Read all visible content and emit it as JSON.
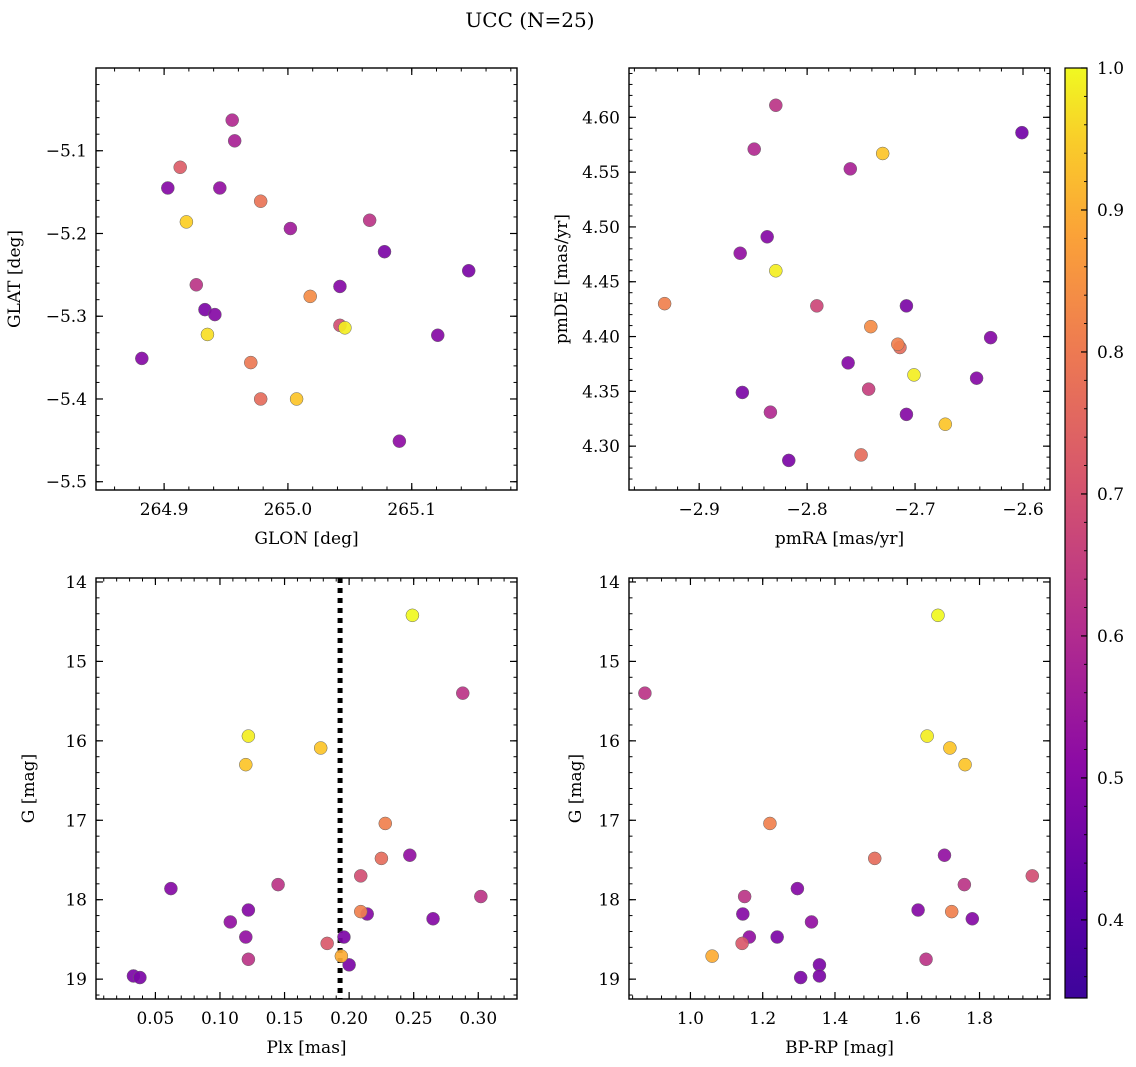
{
  "figure_title": "UCC (N=25)",
  "colorbar": {
    "range": [
      0.345,
      1.0
    ],
    "ticks": [
      "0.4",
      "0.5",
      "0.6",
      "0.7",
      "0.8",
      "0.9",
      "1.0"
    ],
    "tick_values": [
      0.4,
      0.5,
      0.6,
      0.7,
      0.8,
      0.9,
      1.0
    ],
    "colormap": "plasma"
  },
  "chart_data": [
    {
      "type": "scatter",
      "xlabel": "GLON [deg]",
      "ylabel": "GLAT [deg]",
      "xlim": [
        264.845,
        265.185
      ],
      "ylim": [
        -5.51,
        -5.0
      ],
      "xticks": [
        264.9,
        265.0,
        265.1
      ],
      "xtick_labels": [
        "264.9",
        "265.0",
        "265.1"
      ],
      "yticks": [
        -5.1,
        -5.2,
        -5.3,
        -5.4,
        -5.5
      ],
      "ytick_labels": [
        "−5.1",
        "−5.2",
        "−5.3",
        "−5.4",
        "−5.5"
      ],
      "points": [
        {
          "x": 264.955,
          "y": -5.063,
          "c": 0.52
        },
        {
          "x": 264.957,
          "y": -5.088,
          "c": 0.5
        },
        {
          "x": 264.913,
          "y": -5.12,
          "c": 0.66
        },
        {
          "x": 264.903,
          "y": -5.145,
          "c": 0.42
        },
        {
          "x": 264.945,
          "y": -5.145,
          "c": 0.45
        },
        {
          "x": 264.978,
          "y": -5.161,
          "c": 0.72
        },
        {
          "x": 264.918,
          "y": -5.186,
          "c": 0.92
        },
        {
          "x": 265.066,
          "y": -5.184,
          "c": 0.55
        },
        {
          "x": 265.002,
          "y": -5.194,
          "c": 0.48
        },
        {
          "x": 265.078,
          "y": -5.222,
          "c": 0.4
        },
        {
          "x": 265.146,
          "y": -5.245,
          "c": 0.4
        },
        {
          "x": 264.926,
          "y": -5.262,
          "c": 0.55
        },
        {
          "x": 265.042,
          "y": -5.264,
          "c": 0.42
        },
        {
          "x": 265.018,
          "y": -5.276,
          "c": 0.78
        },
        {
          "x": 264.933,
          "y": -5.292,
          "c": 0.4
        },
        {
          "x": 264.941,
          "y": -5.298,
          "c": 0.42
        },
        {
          "x": 265.042,
          "y": -5.311,
          "c": 0.62
        },
        {
          "x": 265.046,
          "y": -5.314,
          "c": 0.98
        },
        {
          "x": 264.935,
          "y": -5.322,
          "c": 0.95
        },
        {
          "x": 265.121,
          "y": -5.323,
          "c": 0.42
        },
        {
          "x": 264.882,
          "y": -5.351,
          "c": 0.42
        },
        {
          "x": 264.97,
          "y": -5.356,
          "c": 0.73
        },
        {
          "x": 264.978,
          "y": -5.4,
          "c": 0.7
        },
        {
          "x": 265.007,
          "y": -5.4,
          "c": 0.9
        },
        {
          "x": 265.09,
          "y": -5.451,
          "c": 0.44
        }
      ]
    },
    {
      "type": "scatter",
      "xlabel": "pmRA [mas/yr]",
      "ylabel": "pmDE [mas/yr]",
      "xlim": [
        -2.965,
        -2.575
      ],
      "ylim": [
        4.26,
        4.645
      ],
      "xticks": [
        -2.9,
        -2.8,
        -2.7,
        -2.6
      ],
      "xtick_labels": [
        "−2.9",
        "−2.8",
        "−2.7",
        "−2.6"
      ],
      "yticks": [
        4.3,
        4.35,
        4.4,
        4.45,
        4.5,
        4.55,
        4.6
      ],
      "ytick_labels": [
        "4.30",
        "4.35",
        "4.40",
        "4.45",
        "4.50",
        "4.55",
        "4.60"
      ],
      "points": [
        {
          "x": -2.829,
          "y": 4.611,
          "c": 0.55
        },
        {
          "x": -2.601,
          "y": 4.586,
          "c": 0.38
        },
        {
          "x": -2.849,
          "y": 4.571,
          "c": 0.52
        },
        {
          "x": -2.73,
          "y": 4.567,
          "c": 0.9
        },
        {
          "x": -2.76,
          "y": 4.553,
          "c": 0.5
        },
        {
          "x": -2.837,
          "y": 4.491,
          "c": 0.42
        },
        {
          "x": -2.862,
          "y": 4.476,
          "c": 0.45
        },
        {
          "x": -2.829,
          "y": 4.46,
          "c": 0.98
        },
        {
          "x": -2.932,
          "y": 4.43,
          "c": 0.75
        },
        {
          "x": -2.791,
          "y": 4.428,
          "c": 0.6
        },
        {
          "x": -2.708,
          "y": 4.428,
          "c": 0.4
        },
        {
          "x": -2.741,
          "y": 4.409,
          "c": 0.78
        },
        {
          "x": -2.63,
          "y": 4.399,
          "c": 0.42
        },
        {
          "x": -2.716,
          "y": 4.393,
          "c": 0.75
        },
        {
          "x": -2.714,
          "y": 4.39,
          "c": 0.7
        },
        {
          "x": -2.762,
          "y": 4.376,
          "c": 0.42
        },
        {
          "x": -2.701,
          "y": 4.365,
          "c": 0.98
        },
        {
          "x": -2.643,
          "y": 4.362,
          "c": 0.42
        },
        {
          "x": -2.743,
          "y": 4.352,
          "c": 0.58
        },
        {
          "x": -2.86,
          "y": 4.349,
          "c": 0.4
        },
        {
          "x": -2.834,
          "y": 4.331,
          "c": 0.52
        },
        {
          "x": -2.708,
          "y": 4.329,
          "c": 0.42
        },
        {
          "x": -2.672,
          "y": 4.32,
          "c": 0.9
        },
        {
          "x": -2.75,
          "y": 4.292,
          "c": 0.7
        },
        {
          "x": -2.817,
          "y": 4.287,
          "c": 0.4
        }
      ]
    },
    {
      "type": "scatter",
      "xlabel": "Plx [mas]",
      "ylabel": "G [mag]",
      "xlim": [
        0.004,
        0.33
      ],
      "ylim": [
        19.25,
        13.95
      ],
      "y_inverted": true,
      "xticks": [
        0.05,
        0.1,
        0.15,
        0.2,
        0.25,
        0.3
      ],
      "xtick_labels": [
        "0.05",
        "0.10",
        "0.15",
        "0.20",
        "0.25",
        "0.30"
      ],
      "yticks": [
        14,
        15,
        16,
        17,
        18,
        19
      ],
      "ytick_labels": [
        "14",
        "15",
        "16",
        "17",
        "18",
        "19"
      ],
      "vline": 0.193,
      "points": [
        {
          "x": 0.249,
          "y": 14.42,
          "c": 1.0
        },
        {
          "x": 0.288,
          "y": 15.4,
          "c": 0.55
        },
        {
          "x": 0.122,
          "y": 15.94,
          "c": 0.98
        },
        {
          "x": 0.178,
          "y": 16.09,
          "c": 0.9
        },
        {
          "x": 0.12,
          "y": 16.3,
          "c": 0.9
        },
        {
          "x": 0.228,
          "y": 17.04,
          "c": 0.75
        },
        {
          "x": 0.247,
          "y": 17.44,
          "c": 0.45
        },
        {
          "x": 0.225,
          "y": 17.48,
          "c": 0.7
        },
        {
          "x": 0.209,
          "y": 17.7,
          "c": 0.62
        },
        {
          "x": 0.145,
          "y": 17.81,
          "c": 0.55
        },
        {
          "x": 0.062,
          "y": 17.86,
          "c": 0.42
        },
        {
          "x": 0.302,
          "y": 17.96,
          "c": 0.55
        },
        {
          "x": 0.122,
          "y": 18.13,
          "c": 0.42
        },
        {
          "x": 0.209,
          "y": 18.15,
          "c": 0.75
        },
        {
          "x": 0.214,
          "y": 18.18,
          "c": 0.42
        },
        {
          "x": 0.265,
          "y": 18.24,
          "c": 0.42
        },
        {
          "x": 0.108,
          "y": 18.28,
          "c": 0.45
        },
        {
          "x": 0.12,
          "y": 18.47,
          "c": 0.45
        },
        {
          "x": 0.196,
          "y": 18.47,
          "c": 0.4
        },
        {
          "x": 0.183,
          "y": 18.55,
          "c": 0.65
        },
        {
          "x": 0.194,
          "y": 18.71,
          "c": 0.85
        },
        {
          "x": 0.122,
          "y": 18.75,
          "c": 0.55
        },
        {
          "x": 0.2,
          "y": 18.82,
          "c": 0.4
        },
        {
          "x": 0.033,
          "y": 18.96,
          "c": 0.4
        },
        {
          "x": 0.038,
          "y": 18.98,
          "c": 0.4
        }
      ]
    },
    {
      "type": "scatter",
      "xlabel": "BP-RP [mag]",
      "ylabel": "G [mag]",
      "xlim": [
        0.83,
        1.995
      ],
      "ylim": [
        19.25,
        13.95
      ],
      "y_inverted": true,
      "xticks": [
        1.0,
        1.2,
        1.4,
        1.6,
        1.8
      ],
      "xtick_labels": [
        "1.0",
        "1.2",
        "1.4",
        "1.6",
        "1.8"
      ],
      "yticks": [
        14,
        15,
        16,
        17,
        18,
        19
      ],
      "ytick_labels": [
        "14",
        "15",
        "16",
        "17",
        "18",
        "19"
      ],
      "points": [
        {
          "x": 1.685,
          "y": 14.42,
          "c": 1.0
        },
        {
          "x": 0.874,
          "y": 15.4,
          "c": 0.55
        },
        {
          "x": 1.655,
          "y": 15.94,
          "c": 0.98
        },
        {
          "x": 1.718,
          "y": 16.09,
          "c": 0.9
        },
        {
          "x": 1.76,
          "y": 16.3,
          "c": 0.9
        },
        {
          "x": 1.22,
          "y": 17.04,
          "c": 0.75
        },
        {
          "x": 1.703,
          "y": 17.44,
          "c": 0.45
        },
        {
          "x": 1.51,
          "y": 17.48,
          "c": 0.7
        },
        {
          "x": 1.946,
          "y": 17.7,
          "c": 0.62
        },
        {
          "x": 1.758,
          "y": 17.81,
          "c": 0.55
        },
        {
          "x": 1.296,
          "y": 17.86,
          "c": 0.42
        },
        {
          "x": 1.15,
          "y": 17.96,
          "c": 0.55
        },
        {
          "x": 1.63,
          "y": 18.13,
          "c": 0.42
        },
        {
          "x": 1.723,
          "y": 18.15,
          "c": 0.75
        },
        {
          "x": 1.145,
          "y": 18.18,
          "c": 0.42
        },
        {
          "x": 1.78,
          "y": 18.24,
          "c": 0.42
        },
        {
          "x": 1.335,
          "y": 18.28,
          "c": 0.45
        },
        {
          "x": 1.163,
          "y": 18.47,
          "c": 0.45
        },
        {
          "x": 1.24,
          "y": 18.47,
          "c": 0.4
        },
        {
          "x": 1.143,
          "y": 18.55,
          "c": 0.65
        },
        {
          "x": 1.06,
          "y": 18.71,
          "c": 0.85
        },
        {
          "x": 1.652,
          "y": 18.75,
          "c": 0.55
        },
        {
          "x": 1.357,
          "y": 18.82,
          "c": 0.4
        },
        {
          "x": 1.357,
          "y": 18.96,
          "c": 0.4
        },
        {
          "x": 1.305,
          "y": 18.98,
          "c": 0.4
        }
      ]
    }
  ]
}
